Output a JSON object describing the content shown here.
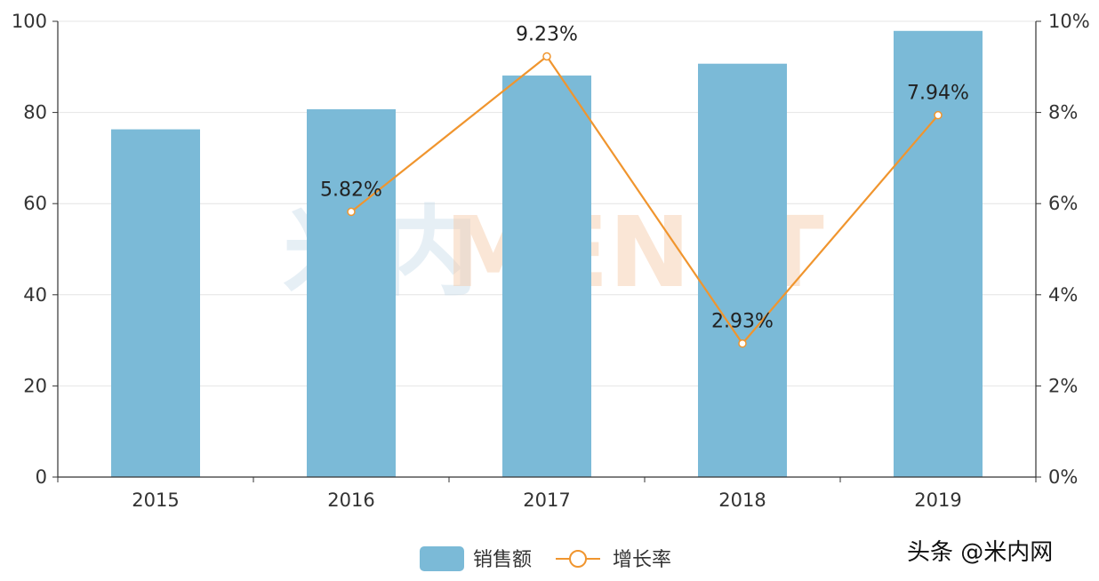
{
  "chart_data": {
    "type": "bar",
    "categories": [
      "2015",
      "2016",
      "2017",
      "2018",
      "2019"
    ],
    "series": [
      {
        "name": "销售额",
        "type": "bar",
        "axis": "left",
        "color": "#7BBAD7",
        "values": [
          76.3,
          80.7,
          88.1,
          90.7,
          97.9
        ]
      },
      {
        "name": "增长率",
        "type": "line",
        "axis": "right",
        "color": "#F0952E",
        "values": [
          null,
          5.82,
          9.23,
          2.93,
          7.94
        ],
        "labels": [
          "",
          "5.82%",
          "9.23%",
          "2.93%",
          "7.94%"
        ]
      }
    ],
    "y_left": {
      "lim": [
        0,
        100
      ],
      "ticks": [
        "0",
        "20",
        "40",
        "60",
        "80",
        "100"
      ]
    },
    "y_right": {
      "lim": [
        0,
        10
      ],
      "ticks": [
        "0%",
        "2%",
        "4%",
        "6%",
        "8%",
        "10%"
      ]
    },
    "grid": true,
    "legend_position": "bottom-center"
  },
  "watermark": {
    "cn": "米内",
    "en": "MENET"
  },
  "footer_brand": "头条 @米内网"
}
